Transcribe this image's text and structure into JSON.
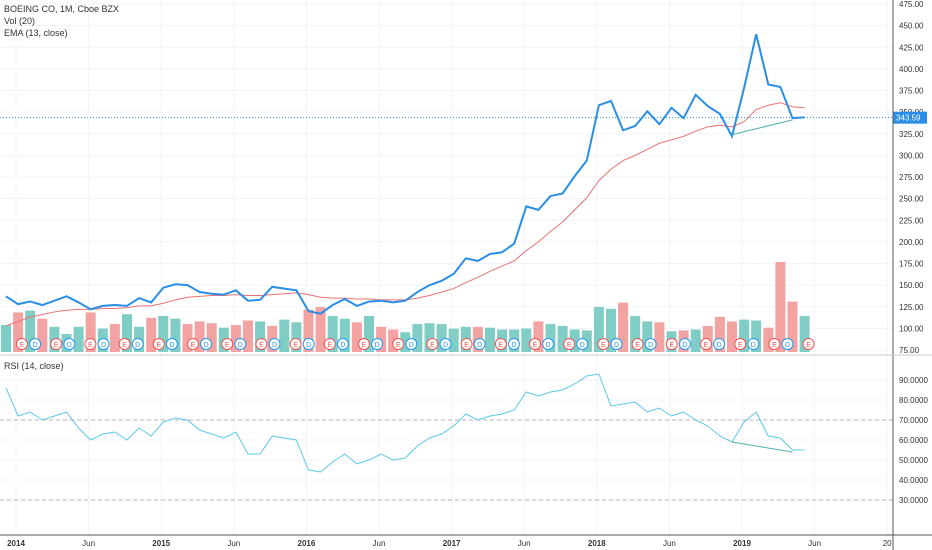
{
  "legend": {
    "title": "BOEING CO, 1M, Cboe BZX",
    "vol": "Vol (20)",
    "ema": "EMA (13, close)"
  },
  "rsi_legend": "RSI (14, close)",
  "last_price_tag": "343.59",
  "colors": {
    "price": "#2a8ee6",
    "ema": "#e8726f",
    "vol_up": "#7fcdc4",
    "vol_down": "#f4a3a3",
    "rsi": "#5bc8e6",
    "earnings_e": "#ef5350",
    "dividend_d": "#2196f3"
  },
  "chart_data": [
    {
      "type": "line",
      "title": "BOEING CO, 1M, Cboe BZX",
      "x_ticks": [
        "2014",
        "Jun",
        "2015",
        "Jun",
        "2016",
        "Jun",
        "2017",
        "Jun",
        "2018",
        "Jun",
        "2019",
        "Jun",
        "20"
      ],
      "y_ticks": [
        "475.00",
        "450.00",
        "425.00",
        "400.00",
        "375.00",
        "350.00",
        "325.00",
        "300.00",
        "275.00",
        "250.00",
        "225.00",
        "200.00",
        "175.00",
        "150.00",
        "125.00",
        "100.00",
        "75.00"
      ],
      "ylim": [
        75,
        475
      ],
      "series": [
        {
          "name": "",
          "values": [
            137,
            128,
            131,
            127,
            132,
            137,
            130,
            122,
            126,
            127,
            126,
            135,
            130,
            147,
            151,
            150,
            142,
            140,
            139,
            144,
            132,
            133,
            148,
            146,
            144,
            120,
            117,
            127,
            134,
            126,
            131,
            132,
            130,
            132,
            142,
            150,
            155,
            163,
            181,
            178,
            186,
            188,
            198,
            241,
            237,
            253,
            256,
            276,
            294,
            358,
            363,
            329,
            334,
            351,
            336,
            355,
            343,
            370,
            357,
            348,
            322,
            378,
            440,
            382,
            379,
            343,
            344
          ]
        },
        {
          "name": "EMA (13, close)",
          "values": [
            103,
            108,
            113,
            116,
            119,
            121,
            122,
            122,
            123,
            123,
            124,
            126,
            126,
            129,
            133,
            136,
            137,
            138,
            138,
            139,
            138,
            138,
            139,
            140,
            141,
            139,
            136,
            135,
            135,
            134,
            134,
            133,
            133,
            133,
            135,
            138,
            142,
            146,
            153,
            159,
            166,
            172,
            178,
            190,
            200,
            212,
            223,
            237,
            251,
            271,
            284,
            294,
            300,
            307,
            314,
            318,
            322,
            328,
            333,
            335,
            333,
            339,
            353,
            358,
            361,
            356,
            355
          ]
        }
      ]
    },
    {
      "type": "bar",
      "title": "Vol (20)",
      "values": [
        30,
        44,
        46,
        37,
        28,
        20,
        28,
        44,
        26,
        31,
        42,
        28,
        38,
        40,
        37,
        31,
        34,
        32,
        27,
        30,
        35,
        34,
        29,
        36,
        33,
        47,
        50,
        40,
        37,
        33,
        40,
        28,
        25,
        22,
        31,
        32,
        31,
        26,
        28,
        28,
        27,
        25,
        25,
        26,
        34,
        31,
        29,
        25,
        24,
        50,
        48,
        55,
        40,
        34,
        33,
        23,
        24,
        25,
        29,
        39,
        34,
        36,
        35,
        27,
        100,
        56,
        40
      ],
      "up": [
        true,
        false,
        true,
        false,
        true,
        true,
        true,
        false,
        true,
        false,
        true,
        true,
        false,
        true,
        true,
        false,
        false,
        false,
        true,
        false,
        false,
        true,
        false,
        true,
        true,
        false,
        false,
        true,
        true,
        false,
        true,
        false,
        false,
        true,
        true,
        true,
        true,
        true,
        true,
        false,
        true,
        true,
        true,
        true,
        false,
        true,
        true,
        true,
        true,
        true,
        true,
        false,
        true,
        true,
        false,
        true,
        false,
        true,
        false,
        false,
        false,
        true,
        true,
        false,
        false,
        false,
        true
      ]
    },
    {
      "type": "line",
      "title": "RSI (14, close)",
      "y_ticks": [
        "90.0000",
        "80.0000",
        "70.0000",
        "60.0000",
        "50.0000",
        "40.0000",
        "30.0000"
      ],
      "ylim": [
        20,
        95
      ],
      "reference_lines": [
        70,
        30
      ],
      "series": [
        {
          "name": "",
          "values": [
            86,
            72,
            74,
            70,
            72,
            74,
            66,
            60,
            63,
            64,
            60,
            66,
            62,
            69,
            71,
            70,
            65,
            63,
            61,
            64,
            53,
            53,
            62,
            61,
            60,
            45,
            44,
            49,
            53,
            48,
            50,
            53,
            50,
            51,
            57,
            61,
            63,
            67,
            73,
            70,
            72,
            73,
            75,
            84,
            82,
            84,
            85,
            88,
            92,
            93,
            77,
            78,
            79,
            74,
            76,
            72,
            74,
            70,
            67,
            62,
            59,
            69,
            74,
            62,
            61,
            55,
            55
          ]
        }
      ]
    }
  ],
  "event_markers": [
    {
      "letter": "E"
    },
    {
      "letter": "D"
    },
    {
      "letter": "E"
    },
    {
      "letter": "D"
    },
    {
      "letter": "E"
    },
    {
      "letter": "D"
    },
    {
      "letter": "E"
    },
    {
      "letter": "D"
    },
    {
      "letter": "E"
    },
    {
      "letter": "D"
    },
    {
      "letter": "E"
    },
    {
      "letter": "D"
    },
    {
      "letter": "E"
    },
    {
      "letter": "D"
    },
    {
      "letter": "E"
    },
    {
      "letter": "D"
    },
    {
      "letter": "E"
    },
    {
      "letter": "D"
    },
    {
      "letter": "E"
    },
    {
      "letter": "D"
    },
    {
      "letter": "E"
    },
    {
      "letter": "D"
    },
    {
      "letter": "E"
    },
    {
      "letter": "D"
    },
    {
      "letter": "E"
    },
    {
      "letter": "D"
    },
    {
      "letter": "E"
    },
    {
      "letter": "D"
    },
    {
      "letter": "E"
    },
    {
      "letter": "D"
    },
    {
      "letter": "E"
    },
    {
      "letter": "D"
    },
    {
      "letter": "E"
    },
    {
      "letter": "D"
    },
    {
      "letter": "E"
    },
    {
      "letter": "D"
    },
    {
      "letter": "E"
    },
    {
      "letter": "D"
    },
    {
      "letter": "E"
    },
    {
      "letter": "D"
    },
    {
      "letter": "E"
    },
    {
      "letter": "D"
    },
    {
      "letter": "E"
    },
    {
      "letter": "D"
    },
    {
      "letter": "E"
    },
    {
      "letter": "D"
    },
    {
      "letter": "E"
    }
  ]
}
